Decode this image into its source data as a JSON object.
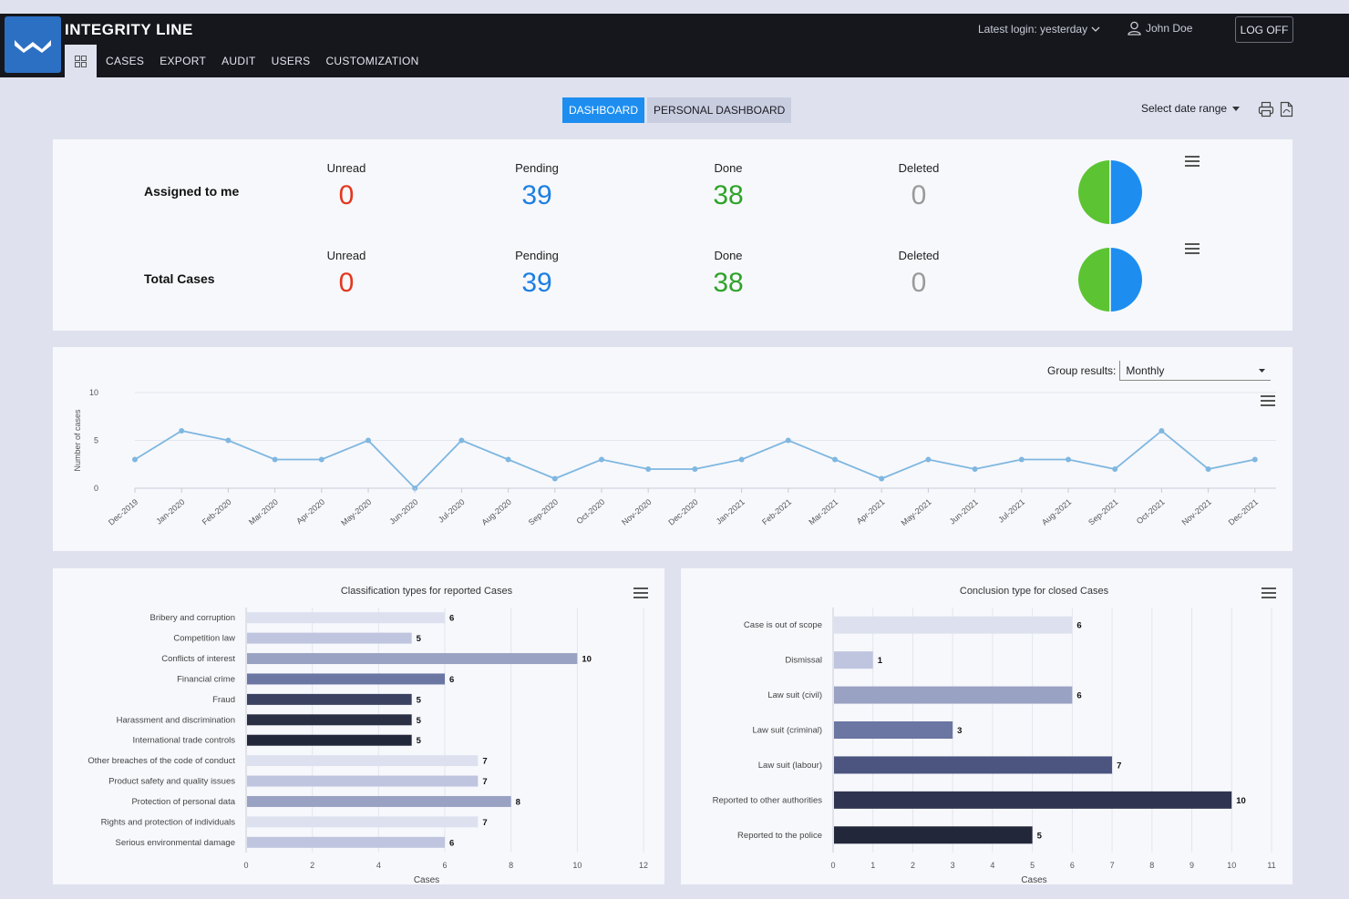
{
  "header": {
    "brand": "INTEGRITY LINE",
    "nav": [
      "CASES",
      "EXPORT",
      "AUDIT",
      "USERS",
      "CUSTOMIZATION"
    ],
    "login_info": "Latest login: yesterday",
    "user_name": "John Doe",
    "logoff_label": "LOG OFF"
  },
  "tabs": {
    "dashboard": "DASHBOARD",
    "personal": "PERSONAL DASHBOARD"
  },
  "date_range": "Select date range",
  "stats": {
    "rows": [
      {
        "label": "Assigned to me",
        "unread_label": "Unread",
        "unread": "0",
        "pending_label": "Pending",
        "pending": "39",
        "done_label": "Done",
        "done": "38",
        "deleted_label": "Deleted",
        "deleted": "0"
      },
      {
        "label": "Total Cases",
        "unread_label": "Unread",
        "unread": "0",
        "pending_label": "Pending",
        "pending": "39",
        "done_label": "Done",
        "done": "38",
        "deleted_label": "Deleted",
        "deleted": "0"
      }
    ],
    "colors": {
      "unread": "#e3371e",
      "pending": "#1d7fe0",
      "done": "#2fa32a",
      "deleted": "#9a9a9a"
    }
  },
  "group_results": {
    "label": "Group results:",
    "value": "Monthly"
  },
  "chart_data": [
    {
      "type": "line",
      "ylabel": "Number of cases",
      "ylim": [
        0,
        10
      ],
      "yticks": [
        0,
        5,
        10
      ],
      "categories": [
        "Dec-2019",
        "Jan-2020",
        "Feb-2020",
        "Mar-2020",
        "Apr-2020",
        "May-2020",
        "Jun-2020",
        "Jul-2020",
        "Aug-2020",
        "Sep-2020",
        "Oct-2020",
        "Nov-2020",
        "Dec-2020",
        "Jan-2021",
        "Feb-2021",
        "Mar-2021",
        "Apr-2021",
        "May-2021",
        "Jun-2021",
        "Jul-2021",
        "Aug-2021",
        "Sep-2021",
        "Oct-2021",
        "Nov-2021",
        "Dec-2021"
      ],
      "values": [
        3,
        6,
        5,
        3,
        3,
        5,
        0,
        5,
        3,
        1,
        3,
        2,
        2,
        3,
        5,
        3,
        1,
        3,
        2,
        3,
        3,
        2,
        6,
        2,
        3
      ],
      "color": "#7fb7e0"
    },
    {
      "type": "bar",
      "title": "Classification types for reported Cases",
      "xlabel": "Cases",
      "xlim": [
        0,
        12
      ],
      "xticks": [
        0,
        2,
        4,
        6,
        8,
        10,
        12
      ],
      "categories": [
        "Bribery and corruption",
        "Competition law",
        "Conflicts of interest",
        "Financial crime",
        "Fraud",
        "Harassment and discrimination",
        "International trade controls",
        "Other breaches of the code of conduct",
        "Product safety and quality issues",
        "Protection of personal data",
        "Rights and protection of individuals",
        "Serious environmental damage"
      ],
      "values": [
        6,
        5,
        10,
        6,
        5,
        5,
        5,
        7,
        7,
        8,
        7,
        6
      ],
      "colors": [
        "#dde1ef",
        "#bfc5de",
        "#9aa2c3",
        "#6b76a3",
        "#3b4261",
        "#2a2f44",
        "#23273a",
        "#dde1ef",
        "#bfc5de",
        "#9aa2c3",
        "#dde1ef",
        "#bfc5de"
      ]
    },
    {
      "type": "bar",
      "title": "Conclusion type for closed Cases",
      "xlabel": "Cases",
      "xlim": [
        0,
        11
      ],
      "xticks": [
        0,
        1,
        2,
        3,
        4,
        5,
        6,
        7,
        8,
        9,
        10,
        11
      ],
      "categories": [
        "Case is out of scope",
        "Dismissal",
        "Law suit (civil)",
        "Law suit (criminal)",
        "Law suit (labour)",
        "Reported to other authorities",
        "Reported to the police"
      ],
      "values": [
        6,
        1,
        6,
        3,
        7,
        10,
        5
      ],
      "colors": [
        "#dde1ef",
        "#bfc5de",
        "#9aa2c3",
        "#6b76a3",
        "#4b557f",
        "#2f3550",
        "#23273a"
      ]
    }
  ]
}
